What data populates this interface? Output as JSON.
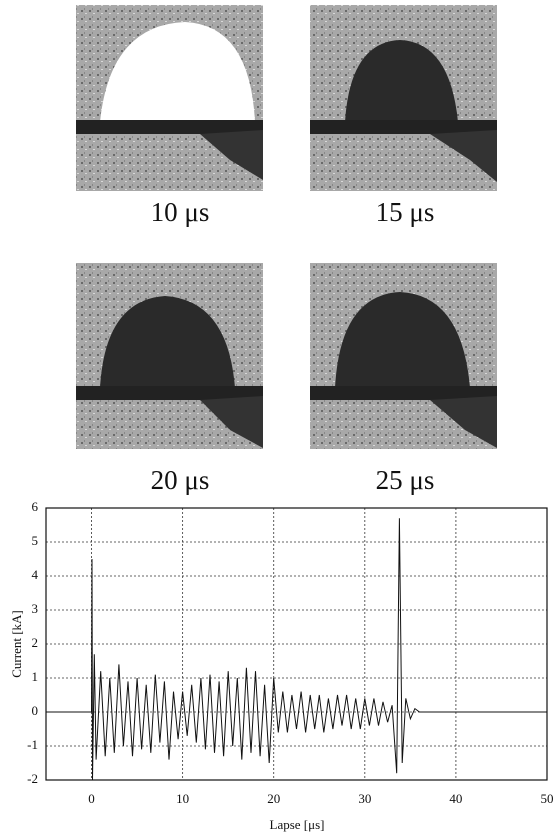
{
  "panels": [
    {
      "label": "10 μs"
    },
    {
      "label": "15 μs"
    },
    {
      "label": "20 μs"
    },
    {
      "label": "25 μs"
    }
  ],
  "chart_data": {
    "type": "line",
    "x_label": "Lapse [μs]",
    "y_label": "Current [kA]",
    "color": "#111111",
    "x": [
      -5,
      -1,
      0,
      0.05,
      0.1,
      0.3,
      0.5,
      1,
      1.5,
      2,
      2.5,
      3,
      3.5,
      4,
      4.5,
      5,
      5.5,
      6,
      6.5,
      7,
      7.5,
      8,
      8.5,
      9,
      9.5,
      10,
      10.5,
      11,
      11.5,
      12,
      12.5,
      13,
      13.5,
      14,
      14.5,
      15,
      15.5,
      16,
      16.5,
      17,
      17.5,
      18,
      18.5,
      19,
      19.5,
      20,
      20.5,
      21,
      21.5,
      22,
      22.5,
      23,
      23.5,
      24,
      24.5,
      25,
      25.5,
      26,
      26.5,
      27,
      27.5,
      28,
      28.5,
      29,
      29.5,
      30,
      30.5,
      31,
      31.5,
      32,
      32.5,
      33,
      33.5,
      33.8,
      34.1,
      34.5,
      35,
      35.5,
      36,
      50
    ],
    "values": [
      0,
      0,
      0,
      4.5,
      -2,
      1.7,
      -1.4,
      1.2,
      -1.3,
      1.0,
      -1.2,
      1.4,
      -1.0,
      0.9,
      -1.3,
      1.0,
      -1.1,
      0.8,
      -1.2,
      1.1,
      -0.9,
      0.9,
      -1.4,
      0.6,
      -0.8,
      0.6,
      -0.7,
      0.8,
      -0.9,
      1.0,
      -1.1,
      1.1,
      -1.2,
      0.9,
      -1.3,
      1.2,
      -1.0,
      1.0,
      -1.4,
      1.3,
      -1.2,
      1.2,
      -1.3,
      0.8,
      -1.5,
      1.0,
      -0.6,
      0.6,
      -0.6,
      0.5,
      -0.5,
      0.6,
      -0.6,
      0.5,
      -0.5,
      0.5,
      -0.6,
      0.4,
      -0.5,
      0.5,
      -0.4,
      0.5,
      -0.5,
      0.4,
      -0.5,
      0.4,
      -0.4,
      0.4,
      -0.4,
      0.3,
      -0.3,
      0.2,
      -1.8,
      5.7,
      -1.5,
      0.4,
      -0.2,
      0.1,
      0,
      0
    ],
    "xlim": [
      -5,
      50
    ],
    "xticks": [
      0,
      10,
      20,
      30,
      40,
      50
    ],
    "ylim": [
      -2,
      6
    ],
    "yticks": [
      -2,
      -1,
      0,
      1,
      2,
      3,
      4,
      5,
      6
    ],
    "grid": true
  }
}
